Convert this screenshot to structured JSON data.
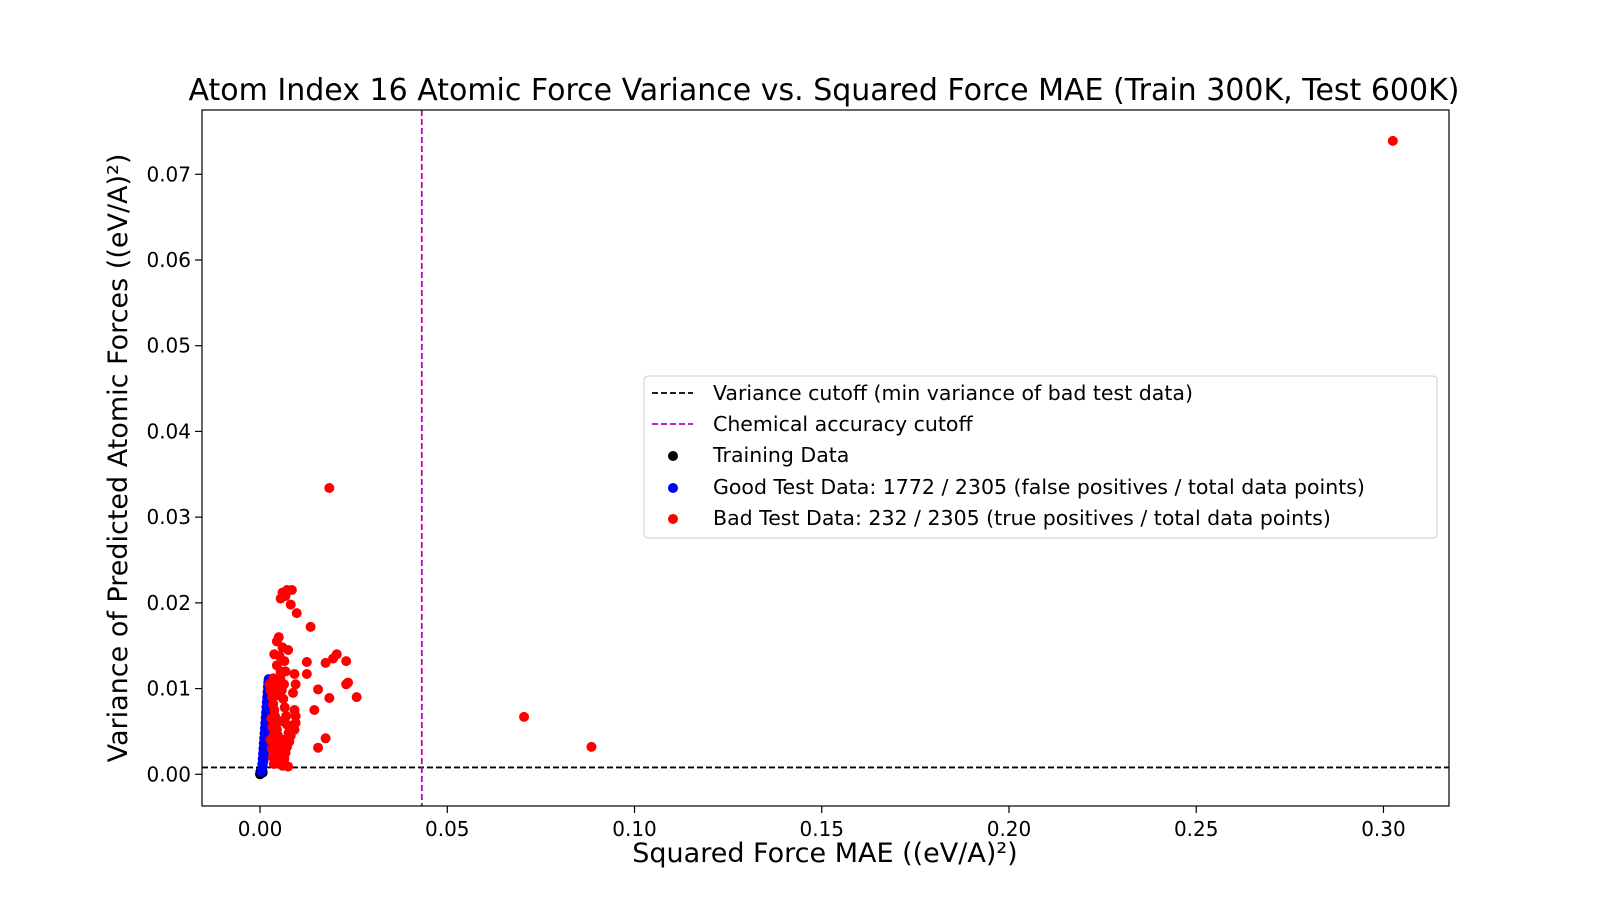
{
  "chart_data": {
    "type": "scatter",
    "title": "Atom Index 16 Atomic Force Variance vs. Squared Force MAE (Train 300K, Test 600K)",
    "xlabel": "Squared Force MAE ((eV/A)²)",
    "ylabel": "Variance of Predicted Atomic Forces ((eV/A)²)",
    "xlim": [
      -0.0155,
      0.3175
    ],
    "ylim": [
      -0.0037,
      0.0775
    ],
    "x_ticks": [
      0.0,
      0.05,
      0.1,
      0.15,
      0.2,
      0.25,
      0.3
    ],
    "x_tick_labels": [
      "0.00",
      "0.05",
      "0.10",
      "0.15",
      "0.20",
      "0.25",
      "0.30"
    ],
    "y_ticks": [
      0.0,
      0.01,
      0.02,
      0.03,
      0.04,
      0.05,
      0.06,
      0.07
    ],
    "y_tick_labels": [
      "0.00",
      "0.01",
      "0.02",
      "0.03",
      "0.04",
      "0.05",
      "0.06",
      "0.07"
    ],
    "grid": false,
    "legend_placement": "center-right",
    "reference_lines": [
      {
        "orientation": "horizontal",
        "value": 0.0008,
        "style": "dashed",
        "color": "#000000",
        "name": "Variance cutoff (min variance of bad test data)"
      },
      {
        "orientation": "vertical",
        "value": 0.0432,
        "style": "dashed",
        "color": "#bf00bf",
        "name": "Chemical accuracy cutoff"
      }
    ],
    "series": [
      {
        "name": "Training Data",
        "color": "#000000",
        "points": [
          [
            0.0,
            0.0
          ],
          [
            0.0002,
            0.0001
          ],
          [
            0.0003,
            0.0002
          ],
          [
            0.0001,
            0.0003
          ],
          [
            0.0004,
            0.0002
          ],
          [
            0.0002,
            0.0004
          ],
          [
            0.0005,
            0.0003
          ],
          [
            0.0003,
            0.0005
          ],
          [
            0.0006,
            0.0004
          ],
          [
            0.0001,
            0.0001
          ],
          [
            0.0004,
            0.0006
          ],
          [
            0.0007,
            0.0002
          ]
        ]
      },
      {
        "name": "Good Test Data: 1772 / 2305 (false positives / total data points)",
        "color": "#0000ff",
        "points": [
          [
            0.0003,
            0.0003
          ],
          [
            0.0005,
            0.0007
          ],
          [
            0.0006,
            0.0012
          ],
          [
            0.0007,
            0.0018
          ],
          [
            0.0008,
            0.0024
          ],
          [
            0.0009,
            0.003
          ],
          [
            0.001,
            0.0036
          ],
          [
            0.0011,
            0.0042
          ],
          [
            0.0012,
            0.0048
          ],
          [
            0.0013,
            0.0054
          ],
          [
            0.0014,
            0.006
          ],
          [
            0.0015,
            0.0066
          ],
          [
            0.0016,
            0.0072
          ],
          [
            0.0017,
            0.0078
          ],
          [
            0.0018,
            0.0084
          ],
          [
            0.0019,
            0.009
          ],
          [
            0.002,
            0.0096
          ],
          [
            0.0021,
            0.0102
          ],
          [
            0.0022,
            0.0107
          ],
          [
            0.0023,
            0.0111
          ],
          [
            0.0009,
            0.0015
          ],
          [
            0.0011,
            0.0025
          ],
          [
            0.0013,
            0.0035
          ],
          [
            0.0015,
            0.0045
          ],
          [
            0.0017,
            0.0055
          ],
          [
            0.0019,
            0.0065
          ],
          [
            0.0021,
            0.0075
          ],
          [
            0.0023,
            0.0085
          ],
          [
            0.0025,
            0.0095
          ],
          [
            0.0007,
            0.001
          ],
          [
            0.0012,
            0.002
          ],
          [
            0.0016,
            0.004
          ],
          [
            0.002,
            0.005
          ],
          [
            0.0024,
            0.007
          ],
          [
            0.0026,
            0.0088
          ],
          [
            0.0018,
            0.0062
          ]
        ]
      },
      {
        "name": "Bad Test Data: 232 / 2305 (true positives / total data points)",
        "color": "#ff0000",
        "points": [
          [
            0.3025,
            0.0739
          ],
          [
            0.0185,
            0.0334
          ],
          [
            0.0705,
            0.0067
          ],
          [
            0.0885,
            0.0032
          ],
          [
            0.0055,
            0.0205
          ],
          [
            0.006,
            0.0212
          ],
          [
            0.0072,
            0.0215
          ],
          [
            0.0085,
            0.0215
          ],
          [
            0.0068,
            0.0208
          ],
          [
            0.0082,
            0.0198
          ],
          [
            0.0098,
            0.0188
          ],
          [
            0.0135,
            0.0172
          ],
          [
            0.005,
            0.016
          ],
          [
            0.0045,
            0.0155
          ],
          [
            0.006,
            0.0148
          ],
          [
            0.0075,
            0.0145
          ],
          [
            0.0038,
            0.014
          ],
          [
            0.0052,
            0.0138
          ],
          [
            0.0065,
            0.0132
          ],
          [
            0.0045,
            0.0127
          ],
          [
            0.0055,
            0.012
          ],
          [
            0.0205,
            0.014
          ],
          [
            0.0195,
            0.0135
          ],
          [
            0.023,
            0.0132
          ],
          [
            0.0175,
            0.013
          ],
          [
            0.0125,
            0.0131
          ],
          [
            0.0125,
            0.0117
          ],
          [
            0.0235,
            0.0107
          ],
          [
            0.023,
            0.0105
          ],
          [
            0.0258,
            0.009
          ],
          [
            0.0185,
            0.0089
          ],
          [
            0.0155,
            0.0099
          ],
          [
            0.0175,
            0.0042
          ],
          [
            0.0155,
            0.0031
          ],
          [
            0.0145,
            0.0075
          ],
          [
            0.0092,
            0.0117
          ],
          [
            0.0095,
            0.0105
          ],
          [
            0.0088,
            0.0095
          ],
          [
            0.0092,
            0.0075
          ],
          [
            0.0095,
            0.0068
          ],
          [
            0.0095,
            0.006
          ],
          [
            0.0092,
            0.0052
          ],
          [
            0.0082,
            0.0045
          ],
          [
            0.0078,
            0.0038
          ],
          [
            0.0072,
            0.0032
          ],
          [
            0.0068,
            0.0025
          ],
          [
            0.0065,
            0.0018
          ],
          [
            0.0075,
            0.0009
          ],
          [
            0.0025,
            0.0105
          ],
          [
            0.0028,
            0.0098
          ],
          [
            0.0032,
            0.009
          ],
          [
            0.0035,
            0.0082
          ],
          [
            0.0038,
            0.0075
          ],
          [
            0.004,
            0.0068
          ],
          [
            0.0042,
            0.006
          ],
          [
            0.0045,
            0.0052
          ],
          [
            0.0048,
            0.0045
          ],
          [
            0.005,
            0.0038
          ],
          [
            0.0052,
            0.003
          ],
          [
            0.0055,
            0.0022
          ],
          [
            0.0058,
            0.0015
          ],
          [
            0.006,
            0.001
          ],
          [
            0.003,
            0.0065
          ],
          [
            0.0033,
            0.0055
          ],
          [
            0.0036,
            0.0045
          ],
          [
            0.0039,
            0.0035
          ],
          [
            0.0042,
            0.0025
          ],
          [
            0.0045,
            0.0015
          ],
          [
            0.0028,
            0.004
          ],
          [
            0.0031,
            0.003
          ],
          [
            0.0034,
            0.002
          ],
          [
            0.0037,
            0.0012
          ],
          [
            0.0062,
            0.0088
          ],
          [
            0.0066,
            0.0078
          ],
          [
            0.007,
            0.0068
          ],
          [
            0.0058,
            0.0098
          ],
          [
            0.0064,
            0.0105
          ],
          [
            0.0054,
            0.0112
          ],
          [
            0.0072,
            0.0058
          ],
          [
            0.0076,
            0.0048
          ],
          [
            0.0064,
            0.004
          ],
          [
            0.0058,
            0.0062
          ],
          [
            0.0048,
            0.0092
          ],
          [
            0.0042,
            0.0102
          ],
          [
            0.0036,
            0.0112
          ],
          [
            0.0068,
            0.012
          ]
        ]
      }
    ]
  }
}
